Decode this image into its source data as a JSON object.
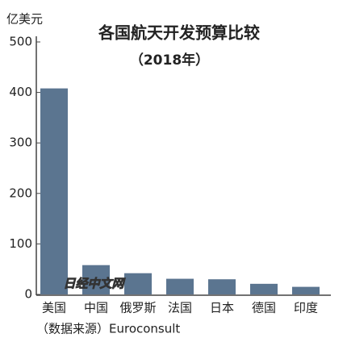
{
  "chart_data": {
    "type": "bar",
    "title": "各国航天开发预算比较",
    "subtitle": "（2018年）",
    "y_label": "亿美元",
    "categories": [
      "美国",
      "中国",
      "俄罗斯",
      "法国",
      "日本",
      "德国",
      "印度"
    ],
    "values": [
      408,
      58,
      42,
      31,
      30,
      21,
      15
    ],
    "color": "#5b7590",
    "ylim": [
      0,
      500
    ],
    "yticks": [
      0,
      100,
      200,
      300,
      400,
      500
    ],
    "grid": false,
    "source": "（数据来源）Euroconsult",
    "watermark": "日经中文网"
  }
}
